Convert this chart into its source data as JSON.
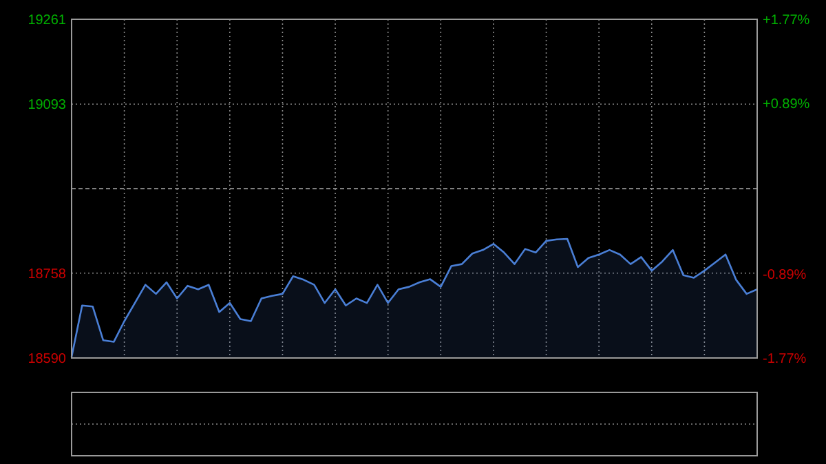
{
  "chart_data": {
    "type": "area",
    "categories": [
      null,
      null,
      null,
      null,
      null,
      null,
      null,
      null,
      null,
      null,
      null,
      null,
      null,
      null,
      null,
      null,
      null,
      null,
      null,
      null,
      null,
      null,
      null,
      null,
      null,
      null,
      null,
      null,
      null,
      null,
      null,
      null,
      null,
      null,
      null,
      null,
      null,
      null,
      null,
      null,
      null,
      null,
      null,
      null,
      null,
      null,
      null,
      null,
      null,
      null,
      null,
      null,
      null,
      null,
      null,
      null,
      null,
      null,
      null,
      null,
      null,
      null,
      null,
      null,
      null,
      null
    ],
    "series": [
      {
        "color": "#4a7fd6",
        "values": [
          18592,
          18694,
          18692,
          18625,
          18622,
          18663,
          18699,
          18735,
          18717,
          18740,
          18708,
          18733,
          18726,
          18735,
          18681,
          18699,
          18667,
          18663,
          18708,
          18713,
          18717,
          18752,
          18745,
          18735,
          18699,
          18726,
          18694,
          18708,
          18699,
          18735,
          18699,
          18726,
          18731,
          18740,
          18746,
          18731,
          18772,
          18776,
          18797,
          18804,
          18816,
          18799,
          18776,
          18806,
          18799,
          18822,
          18825,
          18826,
          18770,
          18788,
          18795,
          18804,
          18795,
          18776,
          18790,
          18763,
          18781,
          18804,
          18754,
          18749,
          18763,
          18779,
          18795,
          18745,
          18717,
          18726
        ]
      }
    ],
    "ylim": [
      18590,
      19261
    ],
    "yticks": [
      18590,
      18758,
      19093,
      19261
    ],
    "y2lim": [
      -1.77,
      1.77
    ],
    "y2ticks": [
      {
        "value": 1.77,
        "label": "+1.77%"
      },
      {
        "value": 0.89,
        "label": "+0.89%"
      },
      {
        "value": -0.89,
        "label": "-0.89%"
      },
      {
        "value": -1.77,
        "label": "-1.77%"
      }
    ],
    "ref_lines": [
      {
        "axis": "y2",
        "value": 0,
        "line_style": "dashed",
        "color": "#808080"
      }
    ],
    "grid": true
  }
}
